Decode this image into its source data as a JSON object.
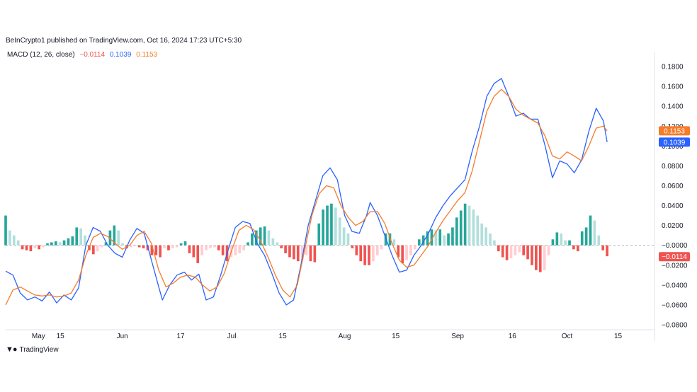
{
  "header": {
    "published": "BeInCrypto1 published on TradingView.com, Oct 16, 2024 17:23 UTC+5:30"
  },
  "legend": {
    "indicator": "MACD (12, 26, close)",
    "hist_value": "−0.0114",
    "macd_value": "0.1039",
    "signal_value": "0.1153"
  },
  "colors": {
    "macd": "#2962ff",
    "signal": "#f57c2a",
    "hist_pos_strong": "#26a69a",
    "hist_pos_weak": "#b2dfdb",
    "hist_neg_strong": "#ef5350",
    "hist_neg_weak": "#ffcdd2"
  },
  "brand": {
    "name": "TradingView"
  },
  "chart_data": {
    "type": "line",
    "ylim": [
      -0.085,
      0.19
    ],
    "yticks": [
      0.18,
      0.16,
      0.14,
      0.12,
      0.1,
      0.08,
      0.06,
      0.04,
      0.02,
      0.0,
      -0.02,
      -0.04,
      -0.06,
      -0.08
    ],
    "ytick_labels": [
      "0.1800",
      "0.1600",
      "0.1400",
      "0.1200",
      "0.1000",
      "0.0800",
      "0.0600",
      "0.0400",
      "0.0200",
      "−0.0000",
      "−0.0200",
      "−0.0400",
      "−0.0600",
      "−0.0800"
    ],
    "xticks": [
      {
        "label": "May",
        "day": 9
      },
      {
        "label": "15",
        "day": 15
      },
      {
        "label": "Jun",
        "day": 32
      },
      {
        "label": "17",
        "day": 48
      },
      {
        "label": "Jul",
        "day": 62
      },
      {
        "label": "15",
        "day": 76
      },
      {
        "label": "Aug",
        "day": 93
      },
      {
        "label": "15",
        "day": 107
      },
      {
        "label": "Sep",
        "day": 124
      },
      {
        "label": "16",
        "day": 139
      },
      {
        "label": "Oct",
        "day": 154
      },
      {
        "label": "15",
        "day": 168
      }
    ],
    "xlim": [
      0,
      178
    ],
    "price_tags": [
      {
        "label": "0.1153",
        "value": 0.1153,
        "color": "#f57c2a"
      },
      {
        "label": "0.1039",
        "value": 0.1039,
        "color": "#2962ff"
      },
      {
        "label": "−0.0114",
        "value": -0.0114,
        "color": "#ef5350"
      }
    ],
    "series": [
      {
        "id": "macd",
        "points": [
          [
            0,
            -0.026
          ],
          [
            2,
            -0.03
          ],
          [
            4,
            -0.048
          ],
          [
            6,
            -0.055
          ],
          [
            8,
            -0.052
          ],
          [
            10,
            -0.056
          ],
          [
            12,
            -0.047
          ],
          [
            14,
            -0.058
          ],
          [
            16,
            -0.05
          ],
          [
            18,
            -0.055
          ],
          [
            20,
            -0.043
          ],
          [
            22,
            0.0
          ],
          [
            24,
            0.018
          ],
          [
            26,
            0.014
          ],
          [
            28,
            0.0
          ],
          [
            30,
            -0.008
          ],
          [
            32,
            -0.012
          ],
          [
            34,
            0.005
          ],
          [
            36,
            0.017
          ],
          [
            38,
            0.012
          ],
          [
            40,
            -0.015
          ],
          [
            42,
            -0.042
          ],
          [
            43,
            -0.055
          ],
          [
            45,
            -0.04
          ],
          [
            47,
            -0.03
          ],
          [
            49,
            -0.027
          ],
          [
            51,
            -0.035
          ],
          [
            53,
            -0.029
          ],
          [
            55,
            -0.055
          ],
          [
            57,
            -0.052
          ],
          [
            59,
            -0.03
          ],
          [
            61,
            -0.005
          ],
          [
            63,
            0.018
          ],
          [
            65,
            0.024
          ],
          [
            67,
            0.022
          ],
          [
            69,
            0.002
          ],
          [
            71,
            -0.01
          ],
          [
            73,
            -0.028
          ],
          [
            75,
            -0.048
          ],
          [
            77,
            -0.06
          ],
          [
            79,
            -0.055
          ],
          [
            81,
            -0.02
          ],
          [
            83,
            0.02
          ],
          [
            85,
            0.045
          ],
          [
            87,
            0.07
          ],
          [
            89,
            0.078
          ],
          [
            91,
            0.066
          ],
          [
            93,
            0.03
          ],
          [
            95,
            0.014
          ],
          [
            97,
            0.012
          ],
          [
            99,
            0.03
          ],
          [
            100,
            0.043
          ],
          [
            102,
            0.03
          ],
          [
            104,
            0.01
          ],
          [
            106,
            -0.01
          ],
          [
            108,
            -0.027
          ],
          [
            110,
            -0.025
          ],
          [
            112,
            -0.01
          ],
          [
            114,
            0.0
          ],
          [
            116,
            0.012
          ],
          [
            118,
            0.028
          ],
          [
            120,
            0.04
          ],
          [
            122,
            0.05
          ],
          [
            124,
            0.058
          ],
          [
            126,
            0.066
          ],
          [
            128,
            0.095
          ],
          [
            130,
            0.12
          ],
          [
            132,
            0.15
          ],
          [
            134,
            0.163
          ],
          [
            136,
            0.168
          ],
          [
            138,
            0.15
          ],
          [
            140,
            0.13
          ],
          [
            142,
            0.133
          ],
          [
            144,
            0.127
          ],
          [
            146,
            0.127
          ],
          [
            148,
            0.1
          ],
          [
            150,
            0.068
          ],
          [
            152,
            0.085
          ],
          [
            154,
            0.082
          ],
          [
            156,
            0.073
          ],
          [
            158,
            0.086
          ],
          [
            160,
            0.115
          ],
          [
            162,
            0.138
          ],
          [
            164,
            0.125
          ],
          [
            165,
            0.1039
          ]
        ]
      },
      {
        "id": "signal",
        "points": [
          [
            0,
            -0.06
          ],
          [
            2,
            -0.045
          ],
          [
            4,
            -0.042
          ],
          [
            6,
            -0.046
          ],
          [
            8,
            -0.05
          ],
          [
            10,
            -0.051
          ],
          [
            12,
            -0.05
          ],
          [
            14,
            -0.052
          ],
          [
            16,
            -0.051
          ],
          [
            18,
            -0.048
          ],
          [
            20,
            -0.035
          ],
          [
            22,
            -0.01
          ],
          [
            24,
            0.008
          ],
          [
            26,
            0.012
          ],
          [
            28,
            0.009
          ],
          [
            30,
            0.002
          ],
          [
            32,
            -0.004
          ],
          [
            34,
            0.0
          ],
          [
            36,
            0.01
          ],
          [
            38,
            0.014
          ],
          [
            40,
            0.002
          ],
          [
            42,
            -0.025
          ],
          [
            44,
            -0.042
          ],
          [
            46,
            -0.038
          ],
          [
            48,
            -0.032
          ],
          [
            50,
            -0.03
          ],
          [
            52,
            -0.032
          ],
          [
            54,
            -0.04
          ],
          [
            56,
            -0.046
          ],
          [
            58,
            -0.042
          ],
          [
            60,
            -0.028
          ],
          [
            62,
            -0.005
          ],
          [
            64,
            0.015
          ],
          [
            66,
            0.02
          ],
          [
            68,
            0.016
          ],
          [
            70,
            0.004
          ],
          [
            72,
            -0.012
          ],
          [
            74,
            -0.03
          ],
          [
            76,
            -0.045
          ],
          [
            78,
            -0.052
          ],
          [
            80,
            -0.04
          ],
          [
            82,
            -0.005
          ],
          [
            84,
            0.03
          ],
          [
            86,
            0.052
          ],
          [
            88,
            0.06
          ],
          [
            90,
            0.058
          ],
          [
            92,
            0.04
          ],
          [
            94,
            0.028
          ],
          [
            96,
            0.02
          ],
          [
            98,
            0.024
          ],
          [
            100,
            0.034
          ],
          [
            102,
            0.034
          ],
          [
            104,
            0.022
          ],
          [
            106,
            0.002
          ],
          [
            108,
            -0.015
          ],
          [
            110,
            -0.022
          ],
          [
            112,
            -0.02
          ],
          [
            114,
            -0.01
          ],
          [
            116,
            0.0
          ],
          [
            118,
            0.013
          ],
          [
            120,
            0.025
          ],
          [
            122,
            0.035
          ],
          [
            124,
            0.045
          ],
          [
            126,
            0.053
          ],
          [
            128,
            0.075
          ],
          [
            130,
            0.105
          ],
          [
            132,
            0.135
          ],
          [
            134,
            0.15
          ],
          [
            136,
            0.157
          ],
          [
            138,
            0.15
          ],
          [
            140,
            0.137
          ],
          [
            142,
            0.131
          ],
          [
            144,
            0.127
          ],
          [
            146,
            0.123
          ],
          [
            148,
            0.11
          ],
          [
            150,
            0.09
          ],
          [
            152,
            0.087
          ],
          [
            154,
            0.094
          ],
          [
            156,
            0.09
          ],
          [
            158,
            0.085
          ],
          [
            160,
            0.1
          ],
          [
            162,
            0.118
          ],
          [
            164,
            0.12
          ],
          [
            165,
            0.1153
          ]
        ]
      }
    ],
    "histogram": [
      0.03,
      0.015,
      0.01,
      0.005,
      -0.004,
      -0.005,
      -0.006,
      -0.003,
      -0.004,
      -0.002,
      0.002,
      0.003,
      0.004,
      0.003,
      0.005,
      0.007,
      0.009,
      0.018,
      0.017,
      0.01,
      -0.005,
      -0.009,
      -0.006,
      -0.002,
      0.003,
      0.015,
      0.02,
      0.015,
      0.002,
      -0.003,
      -0.002,
      -0.001,
      -0.002,
      -0.003,
      -0.005,
      -0.01,
      -0.01,
      -0.012,
      -0.003,
      -0.005,
      -0.003,
      -0.002,
      0.002,
      0.004,
      -0.008,
      -0.012,
      -0.018,
      -0.01,
      -0.005,
      -0.003,
      -0.002,
      -0.005,
      -0.01,
      -0.016,
      -0.012,
      -0.01,
      -0.008,
      -0.005,
      0.003,
      0.012,
      0.015,
      0.018,
      0.019,
      0.015,
      0.007,
      0.003,
      -0.003,
      -0.008,
      -0.012,
      -0.014,
      -0.016,
      -0.015,
      -0.01,
      -0.016,
      -0.017,
      0.022,
      0.036,
      0.04,
      0.042,
      0.038,
      0.028,
      0.018,
      0.012,
      -0.003,
      -0.01,
      -0.016,
      -0.02,
      -0.02,
      -0.016,
      -0.01,
      -0.004,
      0.012,
      0.012,
      0.006,
      -0.012,
      -0.018,
      -0.015,
      -0.01,
      -0.004,
      0.006,
      0.01,
      0.014,
      0.016,
      0.015,
      0.016,
      0.01,
      0.012,
      0.018,
      0.028,
      0.035,
      0.042,
      0.04,
      0.036,
      0.03,
      0.022,
      0.018,
      0.012,
      0.005,
      -0.006,
      -0.012,
      -0.015,
      -0.013,
      -0.01,
      -0.007,
      -0.01,
      -0.014,
      -0.02,
      -0.025,
      -0.027,
      -0.025,
      -0.01,
      0.006,
      0.013,
      0.012,
      0.005,
      0.005,
      -0.004,
      -0.006,
      0.014,
      0.018,
      0.03,
      0.025,
      0.01,
      -0.005,
      -0.011
    ]
  }
}
